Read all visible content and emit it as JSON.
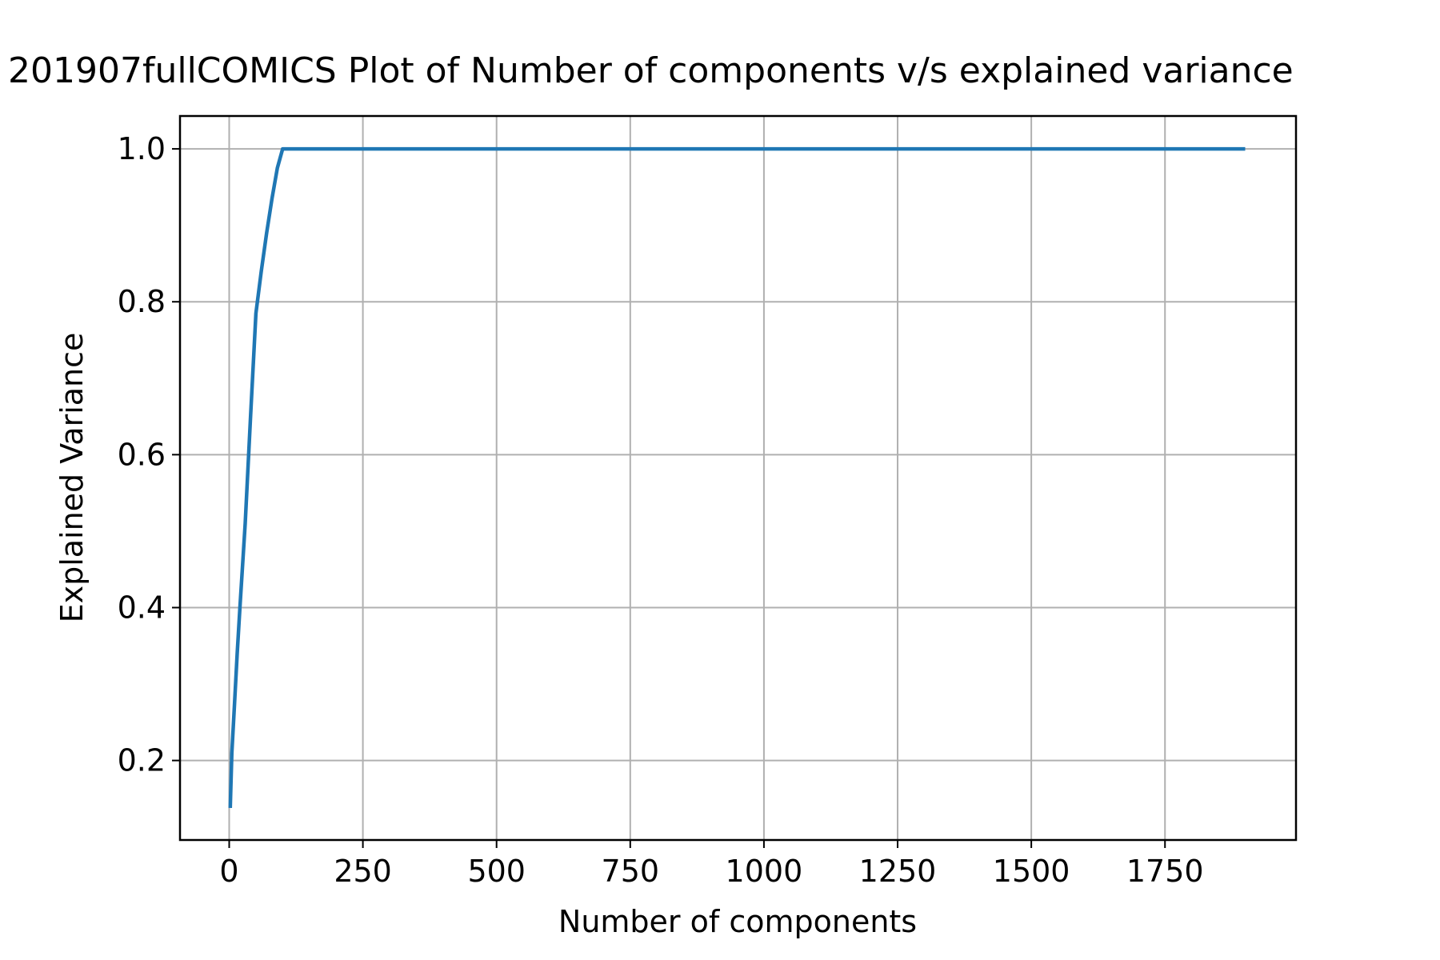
{
  "chart_data": {
    "type": "line",
    "title": "201907fullCOMICS Plot of Number of components v/s explained variance",
    "xlabel": "Number of components",
    "ylabel": "Explained Variance",
    "xlim": [
      -92,
      1995
    ],
    "ylim": [
      0.096,
      1.043
    ],
    "xticks": [
      0,
      250,
      500,
      750,
      1000,
      1250,
      1500,
      1750
    ],
    "xtick_labels": [
      "0",
      "250",
      "500",
      "750",
      "1000",
      "1250",
      "1500",
      "1750"
    ],
    "yticks": [
      0.2,
      0.4,
      0.6,
      0.8,
      1.0
    ],
    "ytick_labels": [
      "0.2",
      "0.4",
      "0.6",
      "0.8",
      "1.0"
    ],
    "grid": true,
    "legend": "none",
    "series": [
      {
        "color": "#1f77b4",
        "x": [
          2,
          5,
          10,
          15,
          20,
          30,
          40,
          50,
          60,
          70,
          80,
          90,
          100,
          150,
          200,
          300,
          500,
          750,
          1000,
          1250,
          1500,
          1750,
          1900
        ],
        "y": [
          0.138,
          0.21,
          0.275,
          0.34,
          0.4,
          0.51,
          0.65,
          0.785,
          0.84,
          0.89,
          0.935,
          0.975,
          1.0,
          1.0,
          1.0,
          1.0,
          1.0,
          1.0,
          1.0,
          1.0,
          1.0,
          1.0,
          1.0
        ]
      }
    ]
  }
}
